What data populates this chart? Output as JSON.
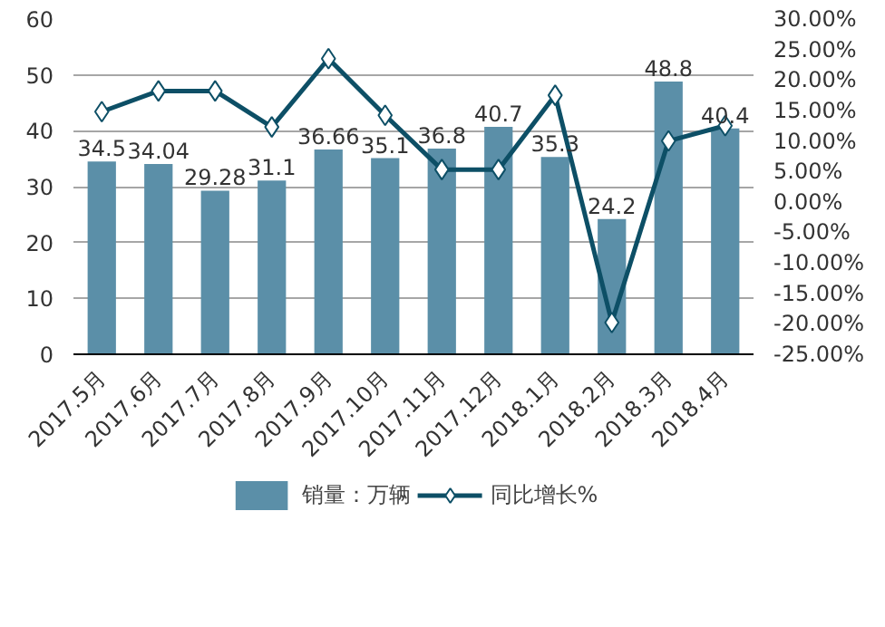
{
  "chart_data": {
    "type": "bar",
    "categories": [
      "2017.5月",
      "2017.6月",
      "2017.7月",
      "2017.8月",
      "2017.9月",
      "2017.10月",
      "2017.11月",
      "2017.12月",
      "2018.1月",
      "2018.2月",
      "2018.3月",
      "2018.4月"
    ],
    "series": [
      {
        "name": "销量：万辆",
        "type": "bar",
        "color": "#5b8fa8",
        "values": [
          34.5,
          34.04,
          29.28,
          31.1,
          36.66,
          35.1,
          36.8,
          40.7,
          35.3,
          24.2,
          48.8,
          40.4
        ],
        "value_labels": [
          "34.5",
          "34.04",
          "29.28",
          "31.1",
          "36.66",
          "35.1",
          "36.8",
          "40.7",
          "35.3",
          "24.2",
          "48.8",
          "40.4"
        ]
      },
      {
        "name": "同比增长%",
        "type": "line",
        "axis": "y2",
        "color": "#0d4f66",
        "marker": "diamond",
        "values": [
          14.8,
          18.2,
          18.2,
          12.3,
          23.5,
          14.2,
          5.3,
          5.3,
          17.5,
          -19.8,
          10.0,
          12.5
        ]
      }
    ],
    "ylim": [
      0,
      60
    ],
    "yticks": [
      0,
      10,
      20,
      30,
      40,
      50,
      60
    ],
    "y2lim": [
      -25,
      30
    ],
    "y2ticks": [
      {
        "value": -25,
        "label": "-25.00%"
      },
      {
        "value": -20,
        "label": "-20.00%"
      },
      {
        "value": -15,
        "label": "-15.00%"
      },
      {
        "value": -10,
        "label": "-10.00%"
      },
      {
        "value": -5,
        "label": "-5.00%"
      },
      {
        "value": 0,
        "label": "0.00%"
      },
      {
        "value": 5,
        "label": "5.00%"
      },
      {
        "value": 10,
        "label": "10.00%"
      },
      {
        "value": 15,
        "label": "15.00%"
      },
      {
        "value": 20,
        "label": "20.00%"
      },
      {
        "value": 25,
        "label": "25.00%"
      },
      {
        "value": 30,
        "label": "30.00%"
      }
    ],
    "grid": "y",
    "legend": "bottom"
  }
}
